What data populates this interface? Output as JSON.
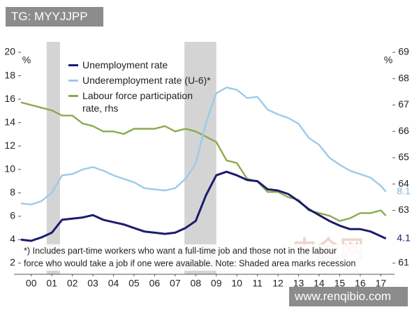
{
  "chart_data": {
    "type": "line",
    "x": [
      2000,
      2000.5,
      2001,
      2001.5,
      2002,
      2002.5,
      2003,
      2003.5,
      2004,
      2004.5,
      2005,
      2005.5,
      2006,
      2006.5,
      2007,
      2007.5,
      2008,
      2008.5,
      2009,
      2009.5,
      2010,
      2010.5,
      2011,
      2011.5,
      2012,
      2012.5,
      2013,
      2013.5,
      2014,
      2014.5,
      2015,
      2015.5,
      2016,
      2016.5,
      2017,
      2017.5,
      2017.75
    ],
    "xlim": [
      2000,
      2018
    ],
    "xticks": [
      {
        "value": 2000.5,
        "label": "00"
      },
      {
        "value": 2001.5,
        "label": "01"
      },
      {
        "value": 2002.5,
        "label": "02"
      },
      {
        "value": 2003.5,
        "label": "03"
      },
      {
        "value": 2004.5,
        "label": "04"
      },
      {
        "value": 2005.5,
        "label": "05"
      },
      {
        "value": 2006.5,
        "label": "06"
      },
      {
        "value": 2007.5,
        "label": "07"
      },
      {
        "value": 2008.5,
        "label": "08"
      },
      {
        "value": 2009.5,
        "label": "09"
      },
      {
        "value": 2010.5,
        "label": "10"
      },
      {
        "value": 2011.5,
        "label": "11"
      },
      {
        "value": 2012.5,
        "label": "12"
      },
      {
        "value": 2013.5,
        "label": "13"
      },
      {
        "value": 2014.5,
        "label": "14"
      },
      {
        "value": 2015.5,
        "label": "15"
      },
      {
        "value": 2016.5,
        "label": "16"
      },
      {
        "value": 2017.5,
        "label": "17"
      }
    ],
    "ylim": [
      2,
      20
    ],
    "yticks": [
      2,
      4,
      6,
      8,
      10,
      12,
      14,
      16,
      18,
      20
    ],
    "y2lim": [
      61,
      69
    ],
    "y2ticks": [
      61,
      63,
      64,
      65,
      66,
      67,
      68,
      69
    ],
    "ylabel": "%",
    "y2label": "%",
    "recessions": [
      [
        2001.25,
        2001.9
      ],
      [
        2007.95,
        2009.5
      ]
    ],
    "series": [
      {
        "name": "Unemployment rate",
        "color": "#1c1b6e",
        "values": [
          4.0,
          3.9,
          4.2,
          4.6,
          5.7,
          5.8,
          5.9,
          6.1,
          5.7,
          5.5,
          5.3,
          5.0,
          4.7,
          4.6,
          4.5,
          4.6,
          5.0,
          5.6,
          7.8,
          9.5,
          9.8,
          9.5,
          9.1,
          9.0,
          8.3,
          8.2,
          7.9,
          7.3,
          6.6,
          6.1,
          5.6,
          5.2,
          4.9,
          4.9,
          4.7,
          4.3,
          4.1
        ]
      },
      {
        "name": "Underemployment rate (U-6)*",
        "color": "#9ccbe8",
        "values": [
          7.1,
          7.0,
          7.3,
          8.0,
          9.5,
          9.6,
          10.0,
          10.2,
          9.9,
          9.5,
          9.2,
          8.9,
          8.4,
          8.3,
          8.2,
          8.4,
          9.2,
          10.5,
          14.0,
          16.5,
          17.0,
          16.8,
          16.1,
          16.2,
          15.1,
          14.7,
          14.4,
          13.9,
          12.7,
          12.1,
          11.0,
          10.4,
          9.9,
          9.6,
          9.3,
          8.6,
          8.1
        ]
      },
      {
        "name": "Labour force participation rate, rhs",
        "color": "#8aab4a",
        "axis": "y2",
        "values": [
          67.1,
          67.0,
          66.9,
          66.8,
          66.6,
          66.6,
          66.3,
          66.2,
          66.0,
          66.0,
          65.9,
          66.1,
          66.1,
          66.1,
          66.2,
          66.0,
          66.1,
          66.0,
          65.8,
          65.6,
          64.9,
          64.8,
          64.2,
          64.1,
          63.7,
          63.7,
          63.5,
          63.4,
          63.0,
          62.9,
          62.8,
          62.6,
          62.7,
          62.9,
          62.9,
          63.0,
          62.8
        ]
      }
    ],
    "footnote": [
      "*) Includes part-time workers who want a full-time job and those not in the labour",
      "force who would take a job if one were available. Note: Shaded area marks recession"
    ]
  },
  "watermarks": {
    "top": "TG: MYYJJPP",
    "bottom": "www.renqibio.com",
    "logo": "中金网"
  }
}
